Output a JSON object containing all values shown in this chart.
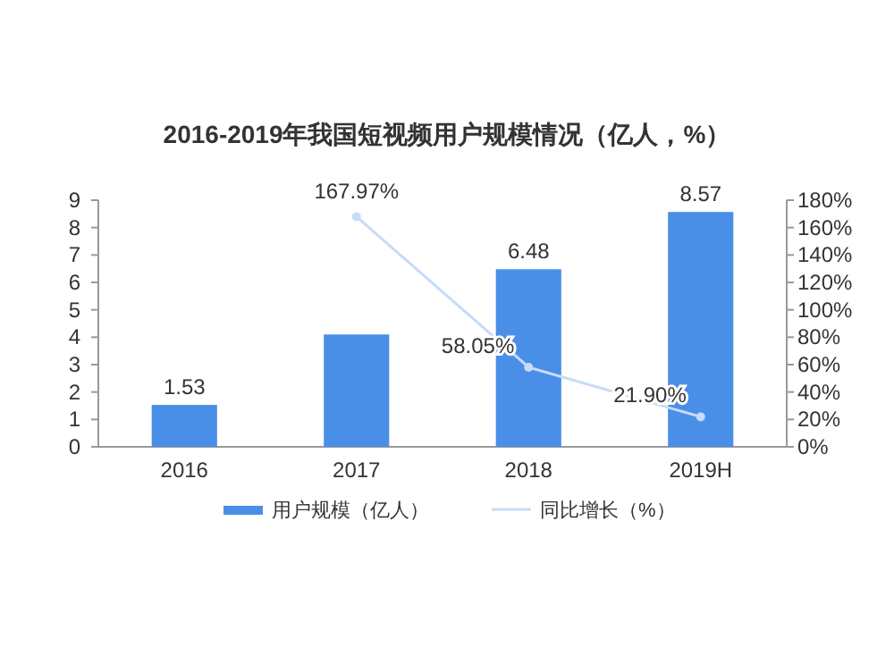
{
  "chart_data": {
    "type": "bar",
    "title": "2016-2019年我国短视频用户规模情况（亿人，%）",
    "categories": [
      "2016",
      "2017",
      "2018",
      "2019H"
    ],
    "series": [
      {
        "name": "用户规模（亿人）",
        "color": "#4a8fe7",
        "values": [
          1.53,
          4.1,
          6.48,
          8.57
        ],
        "value_labels": [
          "1.53",
          null,
          "6.48",
          "8.57"
        ]
      },
      {
        "name": "同比增长（%）",
        "type": "line",
        "axis": "y2",
        "color": "#c6dcf7",
        "marker": "circle",
        "values": [
          null,
          167.97,
          58.05,
          21.9
        ],
        "value_labels": [
          null,
          "167.97%",
          "58.05%",
          "21.90%"
        ]
      }
    ],
    "ylim": [
      0,
      9
    ],
    "yticks": [
      0,
      1,
      2,
      3,
      4,
      5,
      6,
      7,
      8,
      9
    ],
    "y2lim": [
      0,
      180
    ],
    "y2ticks": [
      {
        "value": 0,
        "label": "0%"
      },
      {
        "value": 20,
        "label": "20%"
      },
      {
        "value": 40,
        "label": "40%"
      },
      {
        "value": 60,
        "label": "60%"
      },
      {
        "value": 80,
        "label": "80%"
      },
      {
        "value": 100,
        "label": "100%"
      },
      {
        "value": 120,
        "label": "120%"
      },
      {
        "value": 140,
        "label": "140%"
      },
      {
        "value": 160,
        "label": "160%"
      },
      {
        "value": 180,
        "label": "180%"
      }
    ],
    "legend": "bottom"
  }
}
